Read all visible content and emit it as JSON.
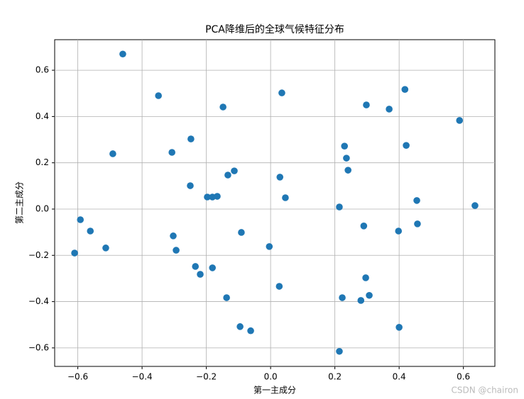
{
  "chart_data": {
    "type": "scatter",
    "title": "PCA降维后的全球气候特征分布",
    "x_label": "第一主成分",
    "y_label": "第二主成分",
    "watermark": "CSDN @chairon",
    "color": "#1f77b4",
    "grid": true,
    "x": [
      -0.46,
      -0.349,
      0.035,
      -0.148,
      0.298,
      0.418,
      0.369,
      0.588,
      -0.248,
      -0.491,
      -0.307,
      0.23,
      0.422,
      0.236,
      0.241,
      -0.113,
      -0.133,
      0.029,
      -0.25,
      -0.197,
      -0.181,
      -0.166,
      0.046,
      0.214,
      0.455,
      0.636,
      -0.592,
      -0.561,
      0.29,
      0.398,
      0.457,
      -0.091,
      -0.303,
      -0.513,
      -0.61,
      -0.294,
      -0.004,
      -0.234,
      -0.181,
      -0.219,
      0.296,
      0.027,
      0.307,
      -0.137,
      0.223,
      0.281,
      -0.095,
      -0.062,
      0.4,
      0.214
    ],
    "values": [
      0.67,
      0.49,
      0.502,
      0.441,
      0.45,
      0.517,
      0.432,
      0.383,
      0.303,
      0.239,
      0.245,
      0.272,
      0.275,
      0.22,
      0.168,
      0.165,
      0.147,
      0.138,
      0.101,
      0.052,
      0.052,
      0.055,
      0.049,
      0.009,
      0.037,
      0.015,
      -0.046,
      -0.095,
      -0.073,
      -0.095,
      -0.064,
      -0.101,
      -0.116,
      -0.168,
      -0.19,
      -0.178,
      -0.162,
      -0.248,
      -0.254,
      -0.282,
      -0.297,
      -0.334,
      -0.373,
      -0.383,
      -0.383,
      -0.395,
      -0.508,
      -0.526,
      -0.511,
      -0.615
    ],
    "xlim": [
      -0.672,
      0.698
    ],
    "ylim": [
      -0.68,
      0.732
    ],
    "xticks": [
      {
        "value": -0.6,
        "label": "−0.6"
      },
      {
        "value": -0.4,
        "label": "−0.4"
      },
      {
        "value": -0.2,
        "label": "−0.2"
      },
      {
        "value": 0,
        "label": "0.0"
      },
      0.2,
      0.4,
      0.6
    ],
    "yticks": [
      {
        "value": -0.6,
        "label": "−0.6"
      },
      {
        "value": -0.4,
        "label": "−0.4"
      },
      {
        "value": -0.2,
        "label": "−0.2"
      },
      {
        "value": 0,
        "label": "0.0"
      },
      0.2,
      0.4,
      0.6
    ]
  }
}
